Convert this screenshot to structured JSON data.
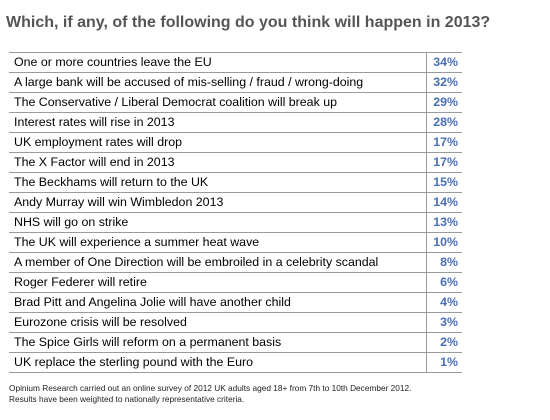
{
  "title": "Which, if any, of the following do you think will happen in 2013?",
  "value_color": "#4a6fb5",
  "chart_data": {
    "type": "table",
    "title": "Which, if any, of the following do you think will happen in 2013?",
    "value_unit": "%",
    "rows": [
      {
        "label": "One or more countries leave the EU",
        "value": 34,
        "display": "34%"
      },
      {
        "label": "A large bank will be accused of mis-selling / fraud / wrong-doing",
        "value": 32,
        "display": "32%"
      },
      {
        "label": "The Conservative / Liberal Democrat coalition will break up",
        "value": 29,
        "display": "29%"
      },
      {
        "label": "Interest rates will rise in 2013",
        "value": 28,
        "display": "28%"
      },
      {
        "label": "UK employment rates will drop",
        "value": 17,
        "display": "17%"
      },
      {
        "label": "The X Factor will end in 2013",
        "value": 17,
        "display": "17%"
      },
      {
        "label": "The Beckhams will return to the UK",
        "value": 15,
        "display": "15%"
      },
      {
        "label": "Andy Murray will win Wimbledon 2013",
        "value": 14,
        "display": "14%"
      },
      {
        "label": "NHS will go on strike",
        "value": 13,
        "display": "13%"
      },
      {
        "label": "The UK will experience a summer heat wave",
        "value": 10,
        "display": "10%"
      },
      {
        "label": "A member of One Direction will be embroiled in a celebrity scandal",
        "value": 8,
        "display": "8%"
      },
      {
        "label": "Roger Federer will retire",
        "value": 6,
        "display": "6%"
      },
      {
        "label": "Brad Pitt and Angelina Jolie will have another child",
        "value": 4,
        "display": "4%"
      },
      {
        "label": "Eurozone crisis will be resolved",
        "value": 3,
        "display": "3%"
      },
      {
        "label": "The Spice Girls will reform on a permanent basis",
        "value": 2,
        "display": "2%"
      },
      {
        "label": "UK replace the sterling pound with the Euro",
        "value": 1,
        "display": "1%"
      }
    ]
  },
  "footnote": {
    "line1": "Opinium Research carried out an online survey of 2012 UK adults aged 18+ from 7th to 10th December 2012.",
    "line2": "Results have been weighted to nationally representative criteria."
  }
}
